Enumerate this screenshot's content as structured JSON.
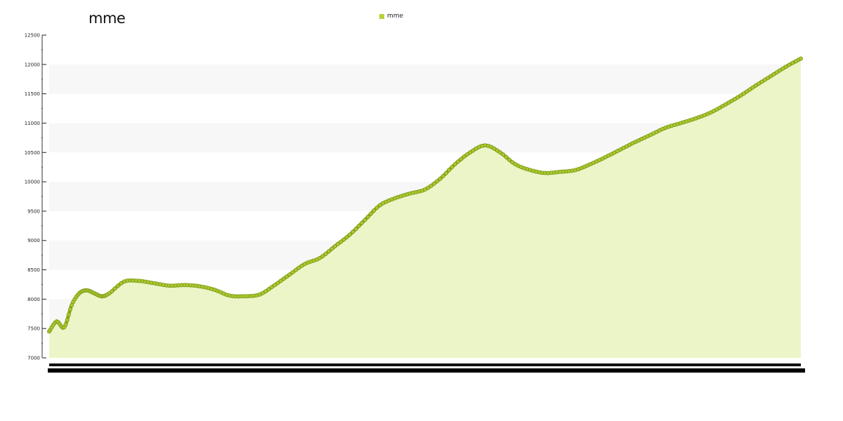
{
  "chart_data": {
    "type": "area",
    "title": "mme",
    "legend": {
      "entries": [
        "mme"
      ],
      "placement": "top-center"
    },
    "ylim": [
      7000,
      12500
    ],
    "y_ticks": [
      "7000",
      "7500",
      "8000",
      "8500",
      "9000",
      "9500",
      "10000",
      "10500",
      "11000",
      "11500",
      "12000",
      "12500"
    ],
    "colors": {
      "line": "#8aa816",
      "marker": "#a9c832",
      "fill": "#ecf5c8",
      "band": "#f7f7f7"
    },
    "series": [
      {
        "name": "mme",
        "x": [
          0,
          0.01,
          0.02,
          0.03,
          0.04,
          0.05,
          0.06,
          0.07,
          0.08,
          0.1,
          0.12,
          0.14,
          0.16,
          0.18,
          0.2,
          0.22,
          0.24,
          0.26,
          0.28,
          0.3,
          0.32,
          0.34,
          0.36,
          0.38,
          0.4,
          0.42,
          0.44,
          0.46,
          0.48,
          0.5,
          0.52,
          0.54,
          0.56,
          0.58,
          0.6,
          0.62,
          0.64,
          0.66,
          0.68,
          0.7,
          0.72,
          0.74,
          0.76,
          0.78,
          0.8,
          0.82,
          0.84,
          0.86,
          0.88,
          0.9,
          0.92,
          0.94,
          0.96,
          0.98,
          1
        ],
        "values": [
          7450,
          7620,
          7520,
          7900,
          8100,
          8150,
          8100,
          8050,
          8100,
          8300,
          8310,
          8270,
          8230,
          8240,
          8220,
          8160,
          8060,
          8050,
          8080,
          8240,
          8420,
          8600,
          8700,
          8900,
          9100,
          9350,
          9600,
          9720,
          9800,
          9870,
          10050,
          10300,
          10500,
          10620,
          10500,
          10300,
          10200,
          10150,
          10170,
          10200,
          10300,
          10420,
          10550,
          10680,
          10800,
          10920,
          11000,
          11080,
          11180,
          11320,
          11470,
          11640,
          11800,
          11960,
          12100
        ]
      }
    ]
  }
}
